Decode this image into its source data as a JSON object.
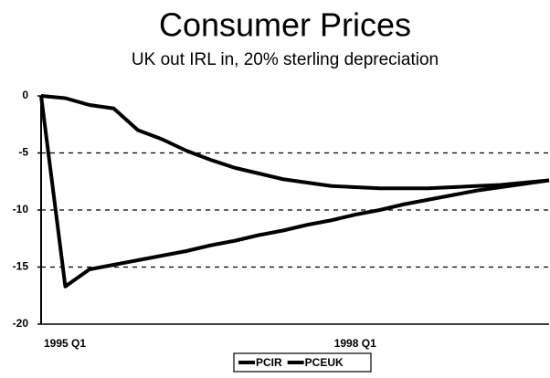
{
  "chart_data": {
    "type": "line",
    "title": "Consumer Prices",
    "subtitle": "UK out IRL in, 20% sterling depreciation",
    "categories": [
      "1995 Q1",
      null,
      null,
      null,
      null,
      null,
      null,
      null,
      null,
      null,
      null,
      null,
      "1998 Q1",
      null,
      null,
      null,
      null,
      null,
      null,
      null,
      null,
      null
    ],
    "series": [
      {
        "name": "PCIR",
        "color": "#000000",
        "values": [
          0,
          -16.7,
          -15.2,
          -14.8,
          -14.4,
          -14.0,
          -13.6,
          -13.1,
          -12.7,
          -12.2,
          -11.8,
          -11.3,
          -10.9,
          -10.4,
          -10.0,
          -9.5,
          -9.1,
          -8.7,
          -8.3,
          -8.0,
          -7.7,
          -7.4
        ]
      },
      {
        "name": "PCEUK",
        "color": "#000000",
        "values": [
          0,
          -0.2,
          -0.8,
          -1.1,
          -3.0,
          -3.8,
          -4.8,
          -5.6,
          -6.3,
          -6.8,
          -7.3,
          -7.6,
          -7.9,
          -8.0,
          -8.1,
          -8.1,
          -8.1,
          -8.0,
          -7.9,
          -7.8,
          -7.6,
          -7.4
        ]
      }
    ],
    "ylim": [
      -20,
      0
    ],
    "yticks": [
      0,
      -5,
      -10,
      -15,
      -20
    ],
    "grid": true,
    "legend": "bottom"
  }
}
